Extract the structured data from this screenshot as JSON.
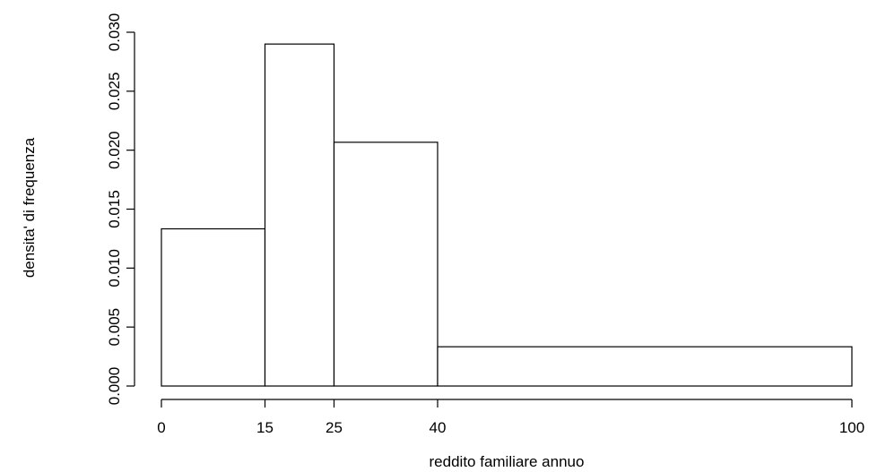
{
  "chart_data": {
    "type": "bar",
    "title": "",
    "xlabel": "reddito familiare annuo",
    "ylabel": "densita' di frequenza",
    "bins": [
      {
        "from": 0,
        "to": 15,
        "value": 0.01333
      },
      {
        "from": 15,
        "to": 25,
        "value": 0.029
      },
      {
        "from": 25,
        "to": 40,
        "value": 0.02067
      },
      {
        "from": 40,
        "to": 100,
        "value": 0.00333
      }
    ],
    "x_ticks": [
      0,
      15,
      25,
      40,
      100
    ],
    "y_ticks": [
      "0.000",
      "0.005",
      "0.010",
      "0.015",
      "0.020",
      "0.025",
      "0.030"
    ],
    "xlim": [
      0,
      100
    ],
    "ylim": [
      0,
      0.03
    ],
    "grid": false,
    "legend": "none",
    "colors": {
      "bar_fill": "#ffffff",
      "bar_stroke": "#000000"
    }
  }
}
